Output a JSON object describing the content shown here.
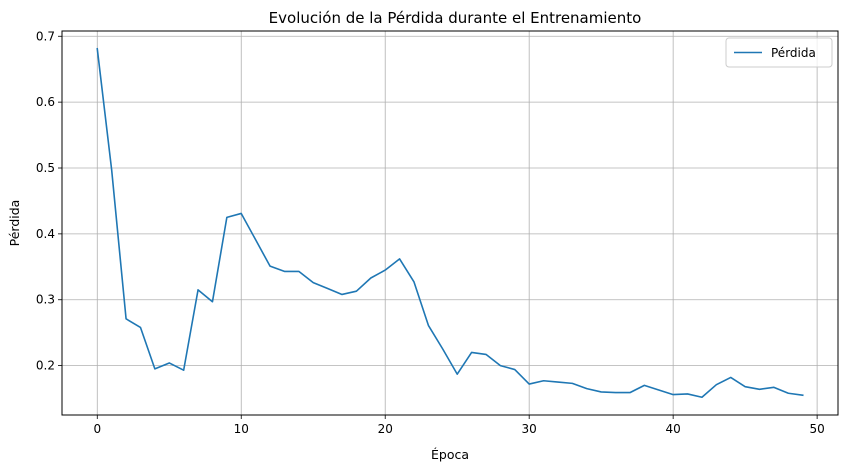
{
  "chart_data": {
    "type": "line",
    "title": "Evolución de la Pérdida durante el Entrenamiento",
    "xlabel": "Época",
    "ylabel": "Pérdida",
    "xlim": [
      -2.45,
      51.45
    ],
    "ylim": [
      0.125,
      0.708
    ],
    "xticks": [
      0,
      10,
      20,
      30,
      40,
      50
    ],
    "yticks": [
      0.2,
      0.3,
      0.4,
      0.5,
      0.6,
      0.7
    ],
    "xtick_labels": [
      "0",
      "10",
      "20",
      "30",
      "40",
      "50"
    ],
    "ytick_labels": [
      "0.2",
      "0.3",
      "0.4",
      "0.5",
      "0.6",
      "0.7"
    ],
    "grid": true,
    "legend_position": "top-right",
    "series": [
      {
        "name": "Pérdida",
        "color": "#1f77b4",
        "x": [
          0,
          1,
          2,
          3,
          4,
          5,
          6,
          7,
          8,
          9,
          10,
          11,
          12,
          13,
          14,
          15,
          16,
          17,
          18,
          19,
          20,
          21,
          22,
          23,
          24,
          25,
          26,
          27,
          28,
          29,
          30,
          31,
          32,
          33,
          34,
          35,
          36,
          37,
          38,
          39,
          40,
          41,
          42,
          43,
          44,
          45,
          46,
          47,
          48,
          49
        ],
        "values": [
          0.681,
          0.497,
          0.271,
          0.258,
          0.195,
          0.204,
          0.193,
          0.315,
          0.297,
          0.425,
          0.431,
          0.391,
          0.351,
          0.343,
          0.343,
          0.326,
          0.317,
          0.308,
          0.313,
          0.333,
          0.345,
          0.362,
          0.327,
          0.261,
          0.225,
          0.187,
          0.22,
          0.217,
          0.2,
          0.194,
          0.172,
          0.177,
          0.175,
          0.173,
          0.165,
          0.16,
          0.159,
          0.159,
          0.17,
          0.163,
          0.156,
          0.157,
          0.152,
          0.171,
          0.182,
          0.168,
          0.164,
          0.167,
          0.158,
          0.155
        ]
      }
    ]
  }
}
